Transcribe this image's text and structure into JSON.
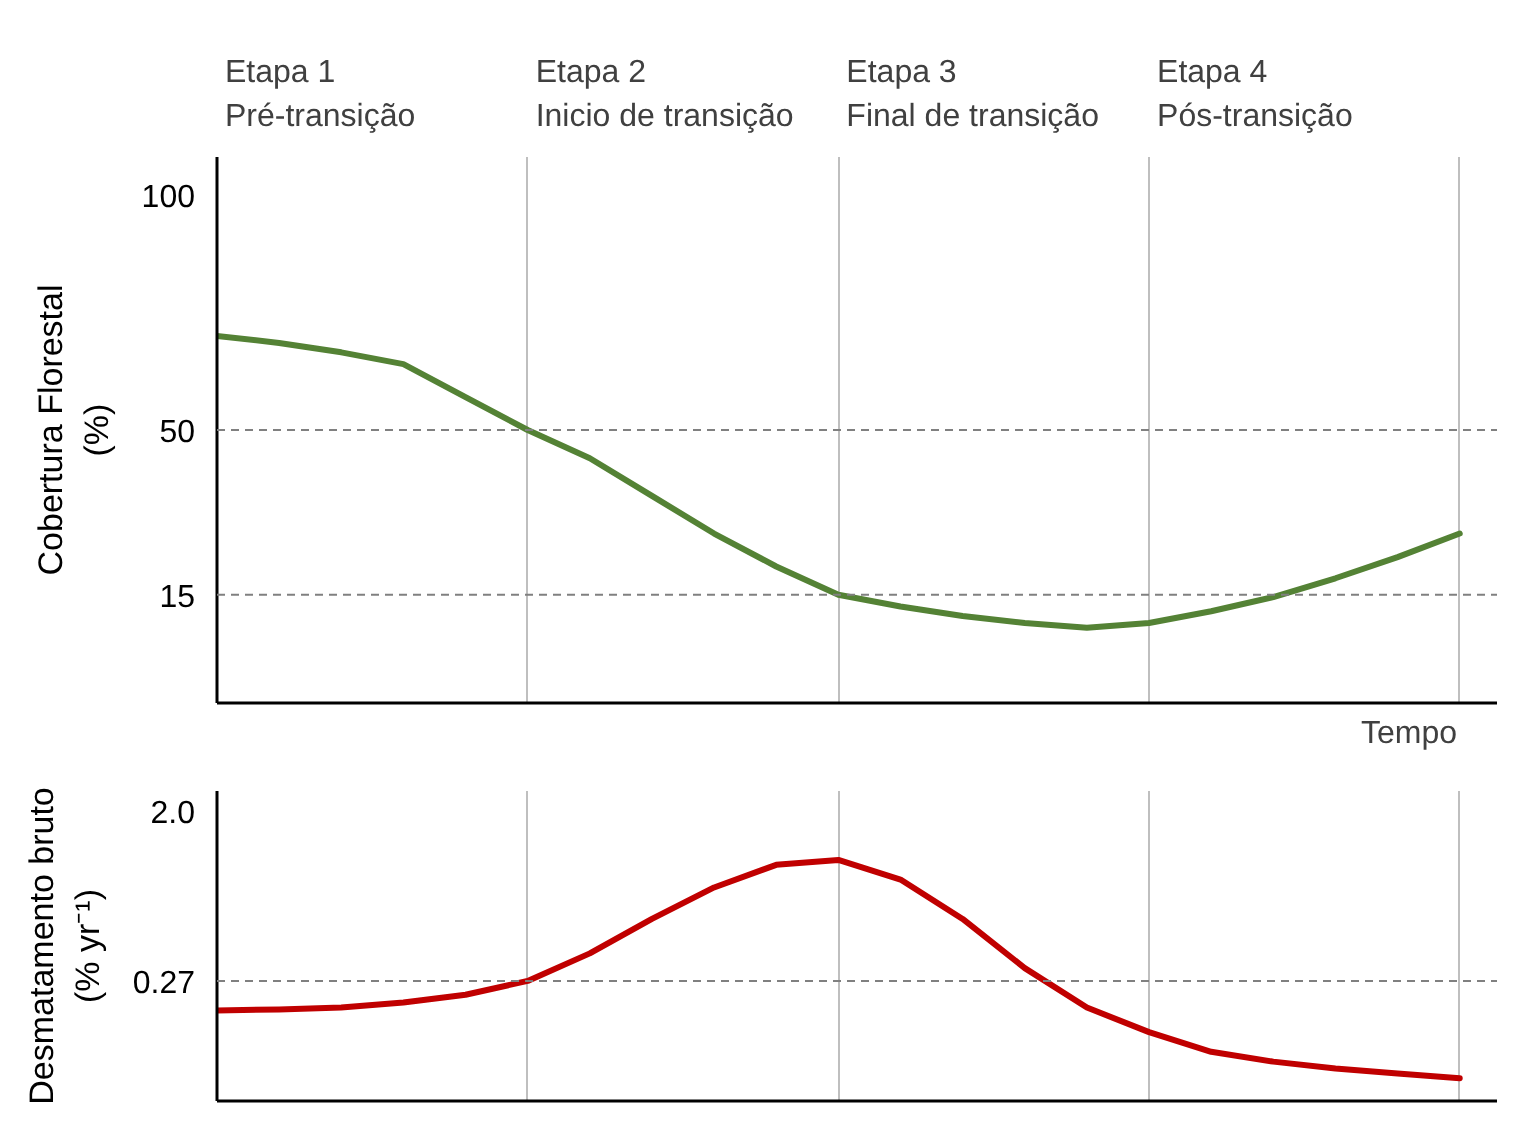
{
  "chart_data": [
    {
      "type": "line",
      "ylabel": "Cobertura Florestal\n(%)",
      "xlabel": "Tempo",
      "ylim": [
        -8,
        108
      ],
      "yticks": [
        15,
        50,
        100
      ],
      "tick_labels": "y",
      "grid": "x",
      "categories": [
        null,
        null,
        null,
        null,
        null,
        null,
        null,
        null,
        null,
        null,
        null,
        null,
        null,
        null,
        null,
        null,
        null,
        null,
        null,
        null,
        null
      ],
      "annotations": [
        "Etapa 1\nPré-transição",
        "Etapa 2\nInicio de transição",
        "Etapa 3\nFinal de transição",
        "Etapa 4\nPós-transição"
      ],
      "ref_lines": [
        {
          "axis": "y",
          "value": 50,
          "color": "#808080",
          "line_style": "dashed"
        },
        {
          "axis": "y",
          "value": 15,
          "color": "#808080",
          "line_style": "dashed"
        }
      ],
      "series": [
        {
          "color": "#548235",
          "values": [
            70,
            68.5,
            66.5,
            64,
            57,
            50,
            44,
            36,
            28,
            21,
            15,
            12.5,
            10.5,
            9,
            8,
            9,
            11.5,
            14.5,
            18.5,
            23,
            28
          ]
        }
      ]
    },
    {
      "type": "line",
      "ylabel": "Desmatamento bruto\n(% yr⁻¹)",
      "ylim": [
        -0.95,
        2.2
      ],
      "yticks": [
        {
          "value": 0.27,
          "label": "0.27"
        },
        {
          "value": 2.0,
          "label": "2.0"
        }
      ],
      "tick_labels": "y",
      "grid": "x",
      "categories": [
        null,
        null,
        null,
        null,
        null,
        null,
        null,
        null,
        null,
        null,
        null,
        null,
        null,
        null,
        null,
        null,
        null,
        null,
        null,
        null,
        null
      ],
      "ref_lines": [
        {
          "axis": "y",
          "value": 0.27,
          "color": "#808080",
          "line_style": "dashed"
        }
      ],
      "series": [
        {
          "color": "#c00000",
          "values": [
            -0.03,
            -0.02,
            0,
            0.05,
            0.13,
            0.27,
            0.55,
            0.9,
            1.22,
            1.45,
            1.5,
            1.3,
            0.9,
            0.4,
            0,
            -0.25,
            -0.45,
            -0.55,
            -0.62,
            -0.67,
            -0.72
          ]
        }
      ]
    }
  ]
}
